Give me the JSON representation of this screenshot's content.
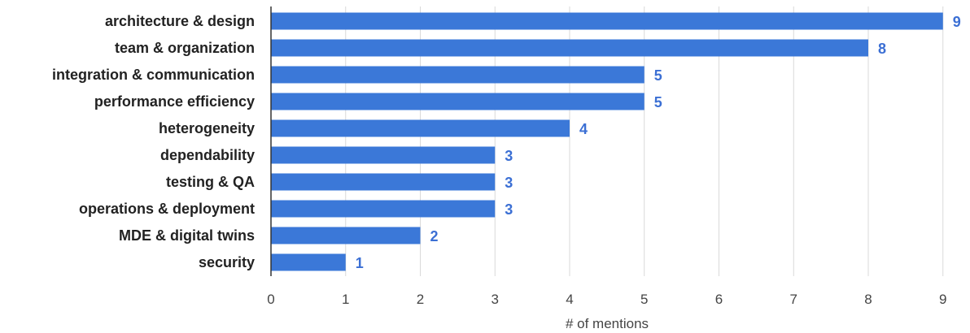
{
  "chart_data": {
    "type": "bar",
    "orientation": "horizontal",
    "categories": [
      "architecture & design",
      "team & organization",
      "integration & communication",
      "performance efficiency",
      "heterogeneity",
      "dependability",
      "testing & QA",
      "operations & deployment",
      "MDE & digital twins",
      "security"
    ],
    "values": [
      9,
      8,
      5,
      5,
      4,
      3,
      3,
      3,
      2,
      1
    ],
    "xlabel": "# of mentions",
    "ylabel": "",
    "title": "",
    "xlim": [
      0,
      9
    ],
    "xticks": [
      "0",
      "1",
      "2",
      "3",
      "4",
      "5",
      "6",
      "7",
      "8",
      "9"
    ],
    "grid": "vertical",
    "legend": "none",
    "colors": {
      "bar": "#3b78d8",
      "data_label": "#3b6fd4",
      "grid": "#d9d9d9",
      "axis": "#333333"
    }
  }
}
